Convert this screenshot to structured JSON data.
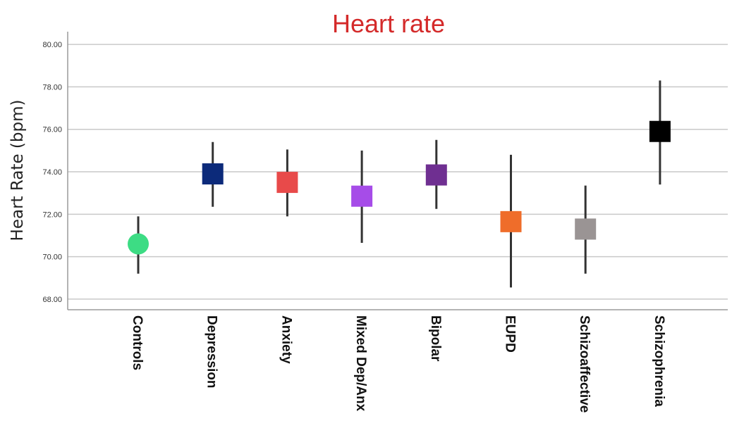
{
  "chart_data": {
    "type": "scatter",
    "subtype": "mean-with-error-bars",
    "title": "Heart rate",
    "xlabel": "",
    "ylabel": "Heart Rate (bpm)",
    "ylim": [
      67.5,
      80.6
    ],
    "yticks": [
      68,
      70,
      72,
      74,
      76,
      78,
      80
    ],
    "ytick_labels": [
      "68.00",
      "70.00",
      "72.00",
      "74.00",
      "76.00",
      "78.00",
      "80.00"
    ],
    "grid": true,
    "legend": false,
    "title_color": "#d42a2a",
    "errorbar_color": "#333333",
    "categories": [
      "Controls",
      "Depression",
      "Anxiety",
      "Mixed Dep/Anx",
      "Bipolar",
      "EUPD",
      "Schizoaffective",
      "Schizophrenia"
    ],
    "markers": [
      "circle",
      "square",
      "square",
      "square",
      "square",
      "square",
      "square",
      "square"
    ],
    "colors": [
      "#3ddc84",
      "#0c2a7a",
      "#e84a4a",
      "#a64ce8",
      "#6f2f91",
      "#ef6d2a",
      "#9a9494",
      "#000000"
    ],
    "values": [
      70.6,
      73.9,
      73.5,
      72.85,
      73.85,
      71.65,
      71.3,
      75.9
    ],
    "lower": [
      69.2,
      72.35,
      71.9,
      70.65,
      72.25,
      68.55,
      69.2,
      73.4
    ],
    "upper": [
      71.9,
      75.4,
      75.05,
      75.0,
      75.5,
      74.8,
      73.35,
      78.3
    ]
  }
}
